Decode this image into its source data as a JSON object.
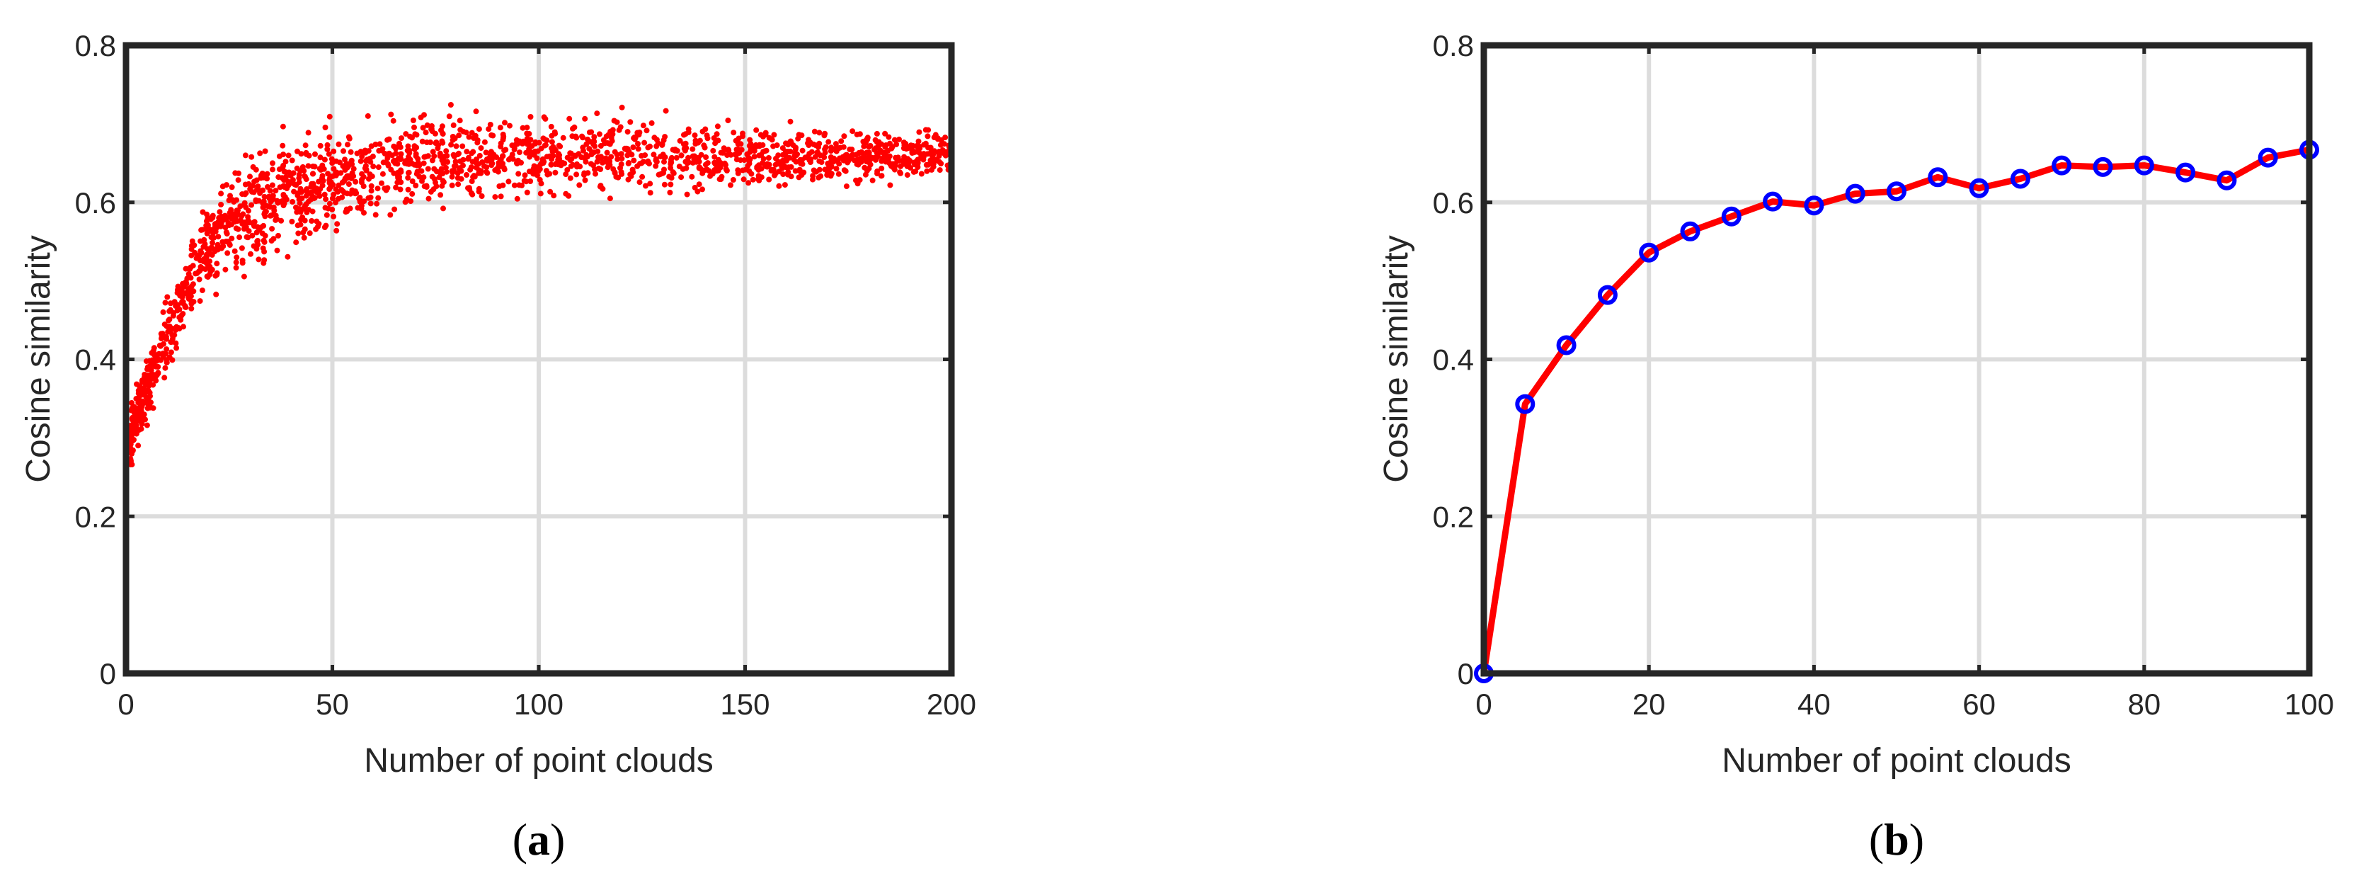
{
  "chart_data": [
    {
      "panel": "a",
      "type": "scatter",
      "xlabel": "Number of point clouds",
      "ylabel": "Cosine similarity",
      "xlim": [
        0,
        200
      ],
      "ylim": [
        0,
        0.8
      ],
      "xticks": [
        0,
        50,
        100,
        150,
        200
      ],
      "yticks": [
        0,
        0.2,
        0.4,
        0.6,
        0.8
      ],
      "grid": true,
      "marker_color": "#ff0000",
      "point_count": 2000,
      "trend": {
        "description": "saturating growth: rises from about 0.30 at x=1 to a plateau around 0.65 at large x",
        "x": [
          1,
          5,
          10,
          15,
          20,
          25,
          30,
          40,
          50,
          70,
          100,
          150,
          200
        ],
        "y_mean": [
          0.3,
          0.36,
          0.43,
          0.49,
          0.54,
          0.57,
          0.59,
          0.61,
          0.63,
          0.65,
          0.66,
          0.66,
          0.66
        ],
        "y_min": [
          0.23,
          0.24,
          0.3,
          0.34,
          0.38,
          0.35,
          0.36,
          0.37,
          0.4,
          0.43,
          0.46,
          0.51,
          0.56
        ],
        "y_max": [
          0.43,
          0.48,
          0.58,
          0.62,
          0.67,
          0.7,
          0.72,
          0.74,
          0.76,
          0.74,
          0.74,
          0.73,
          0.72
        ]
      },
      "caption": "(a)"
    },
    {
      "panel": "b",
      "type": "line",
      "xlabel": "Number of point clouds",
      "ylabel": "Cosine similarity",
      "xlim": [
        0,
        100
      ],
      "ylim": [
        0,
        0.8
      ],
      "xticks": [
        0,
        20,
        40,
        60,
        80,
        100
      ],
      "yticks": [
        0,
        0.2,
        0.4,
        0.6,
        0.8
      ],
      "grid": true,
      "line_color": "#ff0000",
      "marker_color": "#0000ff",
      "x": [
        0,
        5,
        10,
        15,
        20,
        25,
        30,
        35,
        40,
        45,
        50,
        55,
        60,
        65,
        70,
        75,
        80,
        85,
        90,
        95,
        100
      ],
      "y": [
        0,
        0.343,
        0.418,
        0.482,
        0.536,
        0.563,
        0.582,
        0.601,
        0.596,
        0.611,
        0.614,
        0.632,
        0.618,
        0.63,
        0.647,
        0.645,
        0.647,
        0.638,
        0.628,
        0.657,
        0.667
      ],
      "caption": "(b)"
    }
  ]
}
